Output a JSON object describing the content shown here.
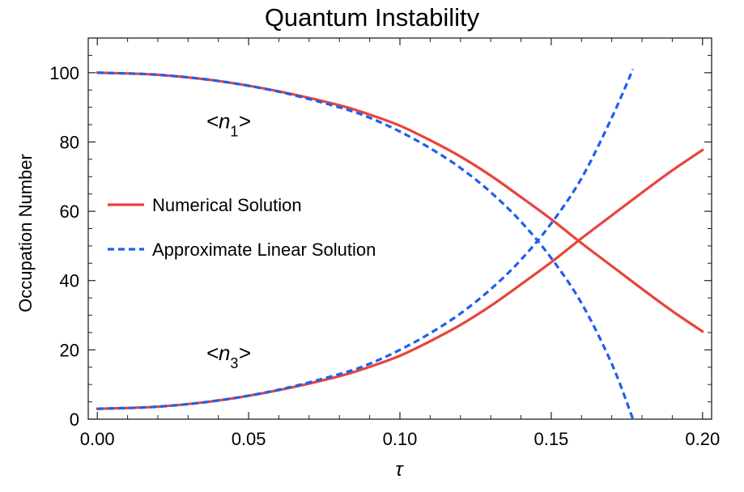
{
  "chart_data": {
    "type": "line",
    "title": "Quantum Instability",
    "xlabel": "τ",
    "ylabel": "Occupation Number",
    "xlim": [
      -0.003,
      0.203
    ],
    "ylim": [
      0,
      110
    ],
    "x_ticks": [
      "0.00",
      "0.05",
      "0.10",
      "0.15",
      "0.20"
    ],
    "x_tick_values": [
      0,
      0.05,
      0.1,
      0.15,
      0.2
    ],
    "y_ticks": [
      "0",
      "20",
      "40",
      "60",
      "80",
      "100"
    ],
    "y_tick_values": [
      0,
      20,
      40,
      60,
      80,
      100
    ],
    "grid": false,
    "legend_position": "left-middle",
    "legend": [
      {
        "label": "Numerical Solution",
        "color": "#e8443a",
        "style": "solid"
      },
      {
        "label": "Approximate Linear Solution",
        "color": "#1f5ef0",
        "style": "dashed"
      }
    ],
    "annotations": [
      {
        "base": "<n",
        "sub": "1",
        "end": ">",
        "x": 0.036,
        "y": 84
      },
      {
        "base": "<n",
        "sub": "3",
        "end": ">",
        "x": 0.036,
        "y": 17
      }
    ],
    "series": [
      {
        "name": "Numerical Solution",
        "color": "#e8443a",
        "style": "solid",
        "x": [
          0,
          0.02,
          0.04,
          0.06,
          0.08,
          0.09,
          0.1,
          0.11,
          0.12,
          0.13,
          0.14,
          0.15,
          0.16,
          0.17,
          0.18,
          0.19,
          0.2
        ],
        "y": [
          100,
          99.4,
          97.6,
          94.6,
          90.6,
          87.9,
          84.7,
          80.5,
          75.8,
          70.3,
          64.1,
          57.7,
          50.8,
          44.2,
          37.6,
          31.2,
          25.3
        ]
      },
      {
        "name": "Numerical Solution",
        "color": "#e8443a",
        "style": "solid",
        "x": [
          0,
          0.02,
          0.04,
          0.06,
          0.08,
          0.09,
          0.1,
          0.11,
          0.12,
          0.13,
          0.14,
          0.15,
          0.16,
          0.17,
          0.18,
          0.19,
          0.2
        ],
        "y": [
          3,
          3.6,
          5.4,
          8.4,
          12.4,
          15.1,
          18.3,
          22.5,
          27.2,
          32.7,
          38.9,
          45.3,
          52.2,
          58.8,
          65.4,
          71.8,
          77.7
        ]
      },
      {
        "name": "Approximate Linear Solution",
        "color": "#1f5ef0",
        "style": "dashed",
        "x": [
          0,
          0.02,
          0.04,
          0.06,
          0.08,
          0.09,
          0.1,
          0.11,
          0.12,
          0.13,
          0.14,
          0.15,
          0.16,
          0.17,
          0.177
        ],
        "y": [
          100,
          99.4,
          97.6,
          94.5,
          90,
          87,
          83,
          78.2,
          72.5,
          65.5,
          57,
          46.5,
          33.5,
          16,
          0
        ]
      },
      {
        "name": "Approximate Linear Solution",
        "color": "#1f5ef0",
        "style": "dashed",
        "x": [
          0,
          0.02,
          0.04,
          0.06,
          0.08,
          0.09,
          0.1,
          0.11,
          0.12,
          0.13,
          0.14,
          0.15,
          0.16,
          0.17,
          0.177
        ],
        "y": [
          3,
          3.6,
          5.4,
          8.5,
          13,
          16,
          20,
          24.8,
          30.5,
          37.5,
          46,
          56.5,
          69.5,
          87,
          101
        ]
      }
    ]
  }
}
